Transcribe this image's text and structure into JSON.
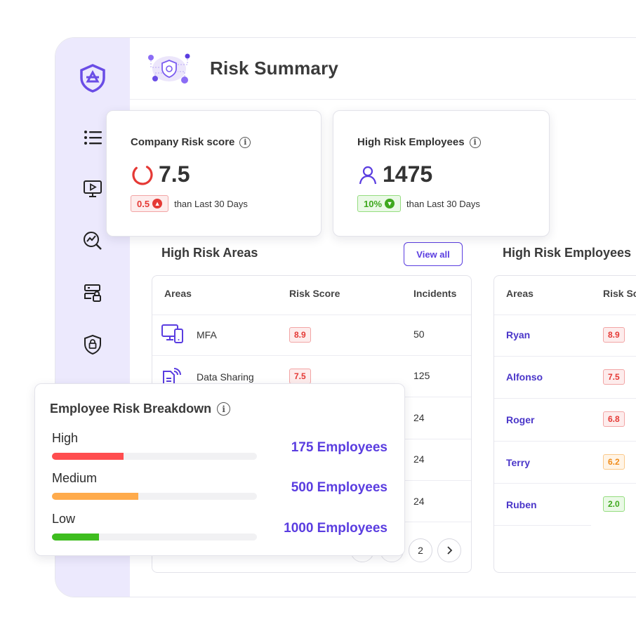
{
  "header": {
    "title": "Risk Summary"
  },
  "company_risk": {
    "title": "Company Risk score",
    "value": "7.5",
    "delta": "0.5",
    "delta_direction": "up",
    "compare_text": "than Last 30 Days",
    "color": "#e53935"
  },
  "high_risk_employees_card": {
    "title": "High Risk Employees",
    "value": "1475",
    "delta": "10%",
    "delta_direction": "down",
    "compare_text": "than Last 30 Days",
    "color": "#3ea81d"
  },
  "high_risk_areas": {
    "title": "High Risk Areas",
    "view_all_label": "View all",
    "columns": [
      "Areas",
      "Risk Score",
      "Incidents"
    ],
    "rows": [
      {
        "icon": "devices-icon",
        "area": "MFA",
        "score": "8.9",
        "incidents": "50"
      },
      {
        "icon": "document-share-icon",
        "area": "Data Sharing",
        "score": "7.5",
        "incidents": "125"
      },
      {
        "incidents": "24"
      },
      {
        "incidents": "24"
      },
      {
        "incidents": "24"
      }
    ],
    "pagination": {
      "page": "2"
    }
  },
  "high_risk_employees_table": {
    "title": "High Risk Employees",
    "columns": [
      "Areas",
      "Risk Sc"
    ],
    "rows": [
      {
        "name": "Ryan",
        "score": "8.9",
        "level": "red"
      },
      {
        "name": "Alfonso",
        "score": "7.5",
        "level": "red"
      },
      {
        "name": "Roger",
        "score": "6.8",
        "level": "red"
      },
      {
        "name": "Terry",
        "score": "6.2",
        "level": "orange"
      },
      {
        "name": "Ruben",
        "score": "2.0",
        "level": "green"
      }
    ]
  },
  "breakdown": {
    "title": "Employee Risk Breakdown",
    "levels": [
      {
        "label": "High",
        "employees": "175 Employees",
        "fraction": 0.35,
        "color": "#ff4d4f"
      },
      {
        "label": "Medium",
        "employees": "500 Employees",
        "fraction": 0.42,
        "color": "#ffab4c"
      },
      {
        "label": "Low",
        "employees": "1000 Employees",
        "fraction": 0.23,
        "color": "#3ebd1f"
      }
    ]
  },
  "sidebar": {
    "items": [
      "logo-icon",
      "list-icon",
      "video-icon",
      "analytics-icon",
      "storage-lock-icon",
      "shield-lock-icon"
    ]
  },
  "colors": {
    "accent": "#5a3de0",
    "sidebar": "#ece9fd"
  }
}
